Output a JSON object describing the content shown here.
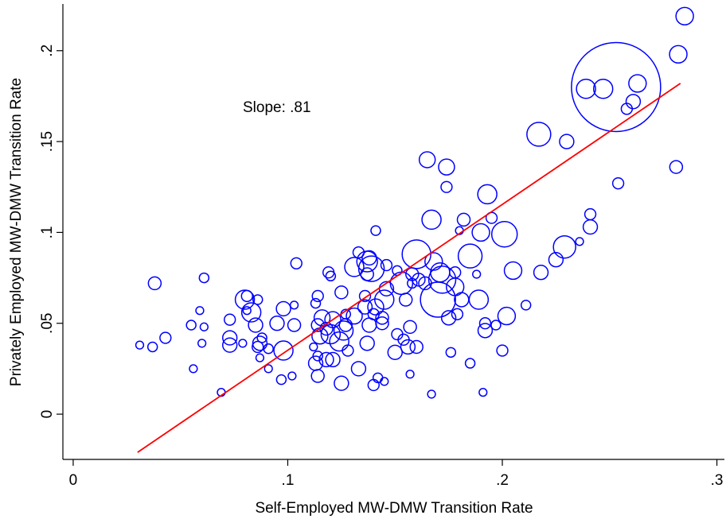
{
  "chart_data": {
    "type": "scatter",
    "x_label": "Self-Employed MW-DMW Transition Rate",
    "y_label": "Privately Employed MW-DMW Transition Rate",
    "annotation": "Slope:  .81",
    "color": "#0000ff",
    "fit": {
      "color": "#ff0000",
      "x": [
        0.03,
        0.283
      ],
      "y": [
        -0.021,
        0.182
      ]
    },
    "xlim": [
      -0.0048,
      0.3035
    ],
    "ylim": [
      -0.0249,
      0.2257
    ],
    "xticks": [
      0,
      {
        "value": 0.1,
        "label": ".1"
      },
      {
        "value": 0.2,
        "label": ".2"
      },
      {
        "value": 0.3,
        "label": ".3"
      }
    ],
    "yticks": [
      0,
      {
        "value": 0.05,
        "label": ".05"
      },
      {
        "value": 0.1,
        "label": ".1"
      },
      {
        "value": 0.15,
        "label": ".15"
      },
      {
        "value": 0.2,
        "label": ".2"
      }
    ],
    "x": [
      0.285,
      0.282,
      0.253,
      0.239,
      0.247,
      0.263,
      0.261,
      0.258,
      0.217,
      0.23,
      0.281,
      0.254,
      0.165,
      0.174,
      0.174,
      0.193,
      0.167,
      0.182,
      0.195,
      0.241,
      0.241,
      0.236,
      0.201,
      0.19,
      0.18,
      0.141,
      0.16,
      0.185,
      0.229,
      0.225,
      0.218,
      0.205,
      0.168,
      0.171,
      0.172,
      0.17,
      0.178,
      0.188,
      0.178,
      0.181,
      0.189,
      0.175,
      0.179,
      0.192,
      0.192,
      0.197,
      0.202,
      0.211,
      0.2,
      0.185,
      0.191,
      0.167,
      0.176,
      0.157,
      0.16,
      0.156,
      0.154,
      0.15,
      0.151,
      0.157,
      0.144,
      0.144,
      0.138,
      0.14,
      0.141,
      0.145,
      0.146,
      0.153,
      0.155,
      0.151,
      0.158,
      0.158,
      0.161,
      0.164,
      0.131,
      0.137,
      0.139,
      0.138,
      0.133,
      0.146,
      0.137,
      0.136,
      0.136,
      0.131,
      0.126,
      0.124,
      0.127,
      0.127,
      0.121,
      0.118,
      0.12,
      0.115,
      0.114,
      0.116,
      0.125,
      0.114,
      0.113,
      0.119,
      0.12,
      0.137,
      0.128,
      0.133,
      0.142,
      0.145,
      0.125,
      0.121,
      0.118,
      0.113,
      0.114,
      0.114,
      0.112,
      0.104,
      0.098,
      0.095,
      0.103,
      0.098,
      0.103,
      0.102,
      0.097,
      0.091,
      0.091,
      0.088,
      0.086,
      0.087,
      0.085,
      0.083,
      0.08,
      0.081,
      0.086,
      0.081,
      0.079,
      0.073,
      0.073,
      0.073,
      0.069,
      0.061,
      0.059,
      0.061,
      0.055,
      0.06,
      0.056,
      0.038,
      0.043,
      0.037,
      0.031,
      0.087,
      0.14
    ],
    "values": [
      0.219,
      0.198,
      0.18,
      0.179,
      0.179,
      0.182,
      0.172,
      0.168,
      0.154,
      0.15,
      0.136,
      0.127,
      0.14,
      0.136,
      0.125,
      0.121,
      0.107,
      0.107,
      0.108,
      0.11,
      0.103,
      0.095,
      0.099,
      0.1,
      0.101,
      0.101,
      0.088,
      0.087,
      0.092,
      0.085,
      0.078,
      0.079,
      0.084,
      0.078,
      0.074,
      0.063,
      0.078,
      0.077,
      0.07,
      0.063,
      0.063,
      0.053,
      0.055,
      0.05,
      0.046,
      0.049,
      0.054,
      0.06,
      0.035,
      0.028,
      0.012,
      0.011,
      0.034,
      0.048,
      0.037,
      0.037,
      0.041,
      0.034,
      0.044,
      0.022,
      0.053,
      0.05,
      0.049,
      0.055,
      0.059,
      0.063,
      0.069,
      0.072,
      0.063,
      0.079,
      0.077,
      0.072,
      0.074,
      0.072,
      0.081,
      0.084,
      0.08,
      0.086,
      0.089,
      0.082,
      0.077,
      0.065,
      0.059,
      0.054,
      0.046,
      0.04,
      0.049,
      0.055,
      0.052,
      0.047,
      0.044,
      0.043,
      0.049,
      0.053,
      0.067,
      0.065,
      0.061,
      0.078,
      0.076,
      0.039,
      0.035,
      0.025,
      0.02,
      0.018,
      0.017,
      0.03,
      0.03,
      0.028,
      0.021,
      0.032,
      0.037,
      0.083,
      0.058,
      0.05,
      0.049,
      0.035,
      0.06,
      0.021,
      0.019,
      0.025,
      0.036,
      0.042,
      0.037,
      0.039,
      0.049,
      0.056,
      0.063,
      0.065,
      0.063,
      0.057,
      0.039,
      0.042,
      0.038,
      0.052,
      0.012,
      0.075,
      0.057,
      0.048,
      0.049,
      0.039,
      0.025,
      0.072,
      0.042,
      0.037,
      0.038,
      0.031,
      0.016
    ],
    "sizes": [
      30,
      30,
      784,
      36,
      36,
      30,
      20,
      12,
      56,
      20,
      16,
      12,
      25,
      25,
      12,
      36,
      36,
      16,
      12,
      12,
      20,
      6,
      64,
      30,
      6,
      9,
      81,
      56,
      49,
      20,
      20,
      30,
      30,
      36,
      72,
      121,
      12,
      6,
      30,
      20,
      36,
      20,
      12,
      12,
      20,
      9,
      30,
      9,
      12,
      9,
      6,
      6,
      9,
      16,
      16,
      20,
      12,
      20,
      12,
      6,
      16,
      16,
      20,
      12,
      25,
      36,
      20,
      49,
      16,
      9,
      16,
      9,
      16,
      16,
      36,
      42,
      64,
      20,
      12,
      12,
      16,
      12,
      20,
      25,
      36,
      36,
      16,
      9,
      25,
      16,
      36,
      25,
      16,
      25,
      16,
      12,
      9,
      12,
      9,
      20,
      12,
      20,
      9,
      6,
      20,
      20,
      20,
      20,
      16,
      9,
      6,
      12,
      20,
      20,
      16,
      36,
      6,
      6,
      9,
      6,
      9,
      9,
      12,
      20,
      20,
      36,
      36,
      12,
      9,
      6,
      6,
      20,
      20,
      12,
      6,
      9,
      6,
      6,
      9,
      6,
      6,
      16,
      12,
      9,
      6,
      6,
      12
    ]
  }
}
